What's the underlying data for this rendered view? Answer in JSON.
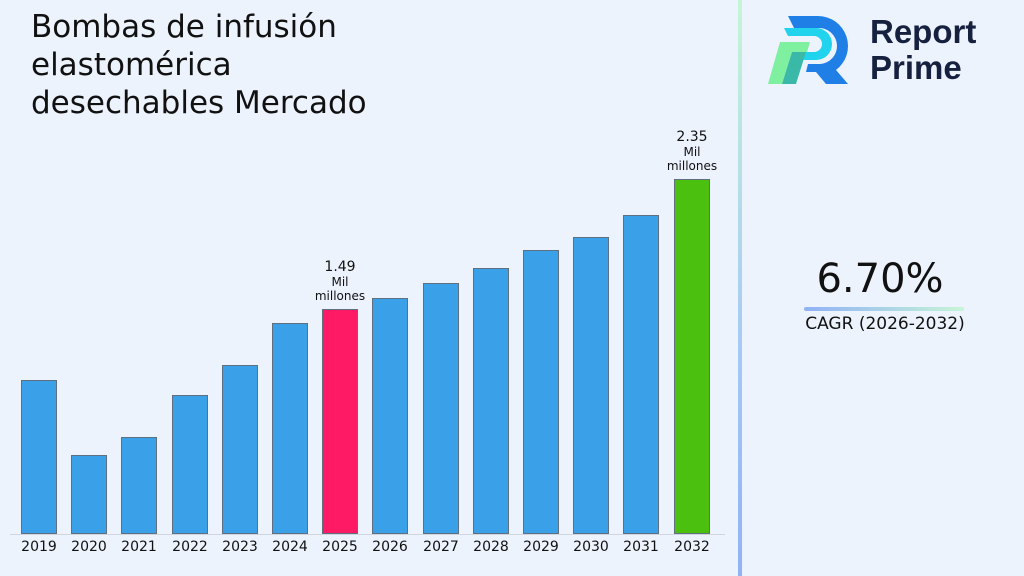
{
  "title": "Bombas de infusión elastomérica desechables Mercado",
  "title_lines": [
    "Bombas de infusión",
    "elastomérica",
    "desechables Mercado"
  ],
  "brand": {
    "name_line1": "Report",
    "name_line2": "Prime",
    "icon": "report-prime-logo-icon"
  },
  "cagr": {
    "value": "6.70%",
    "label": "CAGR (2026-2032)"
  },
  "colors": {
    "bar_default": "#3aa0e8",
    "bar_highlight_current": "#ff1a66",
    "bar_highlight_final": "#4cc00e",
    "background": "#edf3fd"
  },
  "annotations": [
    {
      "year": "2025",
      "value": "1.49",
      "unit": "Mil millones"
    },
    {
      "year": "2032",
      "value": "2.35",
      "unit": "Mil millones"
    }
  ],
  "chart_data": {
    "type": "bar",
    "title": "Bombas de infusión elastomérica desechables Mercado",
    "xlabel": "",
    "ylabel": "",
    "unit": "Mil millones",
    "categories": [
      "2019",
      "2020",
      "2021",
      "2022",
      "2023",
      "2024",
      "2025",
      "2026",
      "2027",
      "2028",
      "2029",
      "2030",
      "2031",
      "2032"
    ],
    "values": [
      1.02,
      0.52,
      0.64,
      0.92,
      1.12,
      1.4,
      1.49,
      1.56,
      1.66,
      1.76,
      1.88,
      1.97,
      2.11,
      2.35
    ],
    "highlight": {
      "2025": "#ff1a66",
      "2032": "#4cc00e"
    },
    "data_labels": {
      "2025": "1.49 Mil millones",
      "2032": "2.35 Mil millones"
    },
    "ylim": [
      0,
      2.5
    ],
    "grid": false,
    "legend": null,
    "cagr": "6.70%",
    "cagr_period": "2026-2032"
  }
}
